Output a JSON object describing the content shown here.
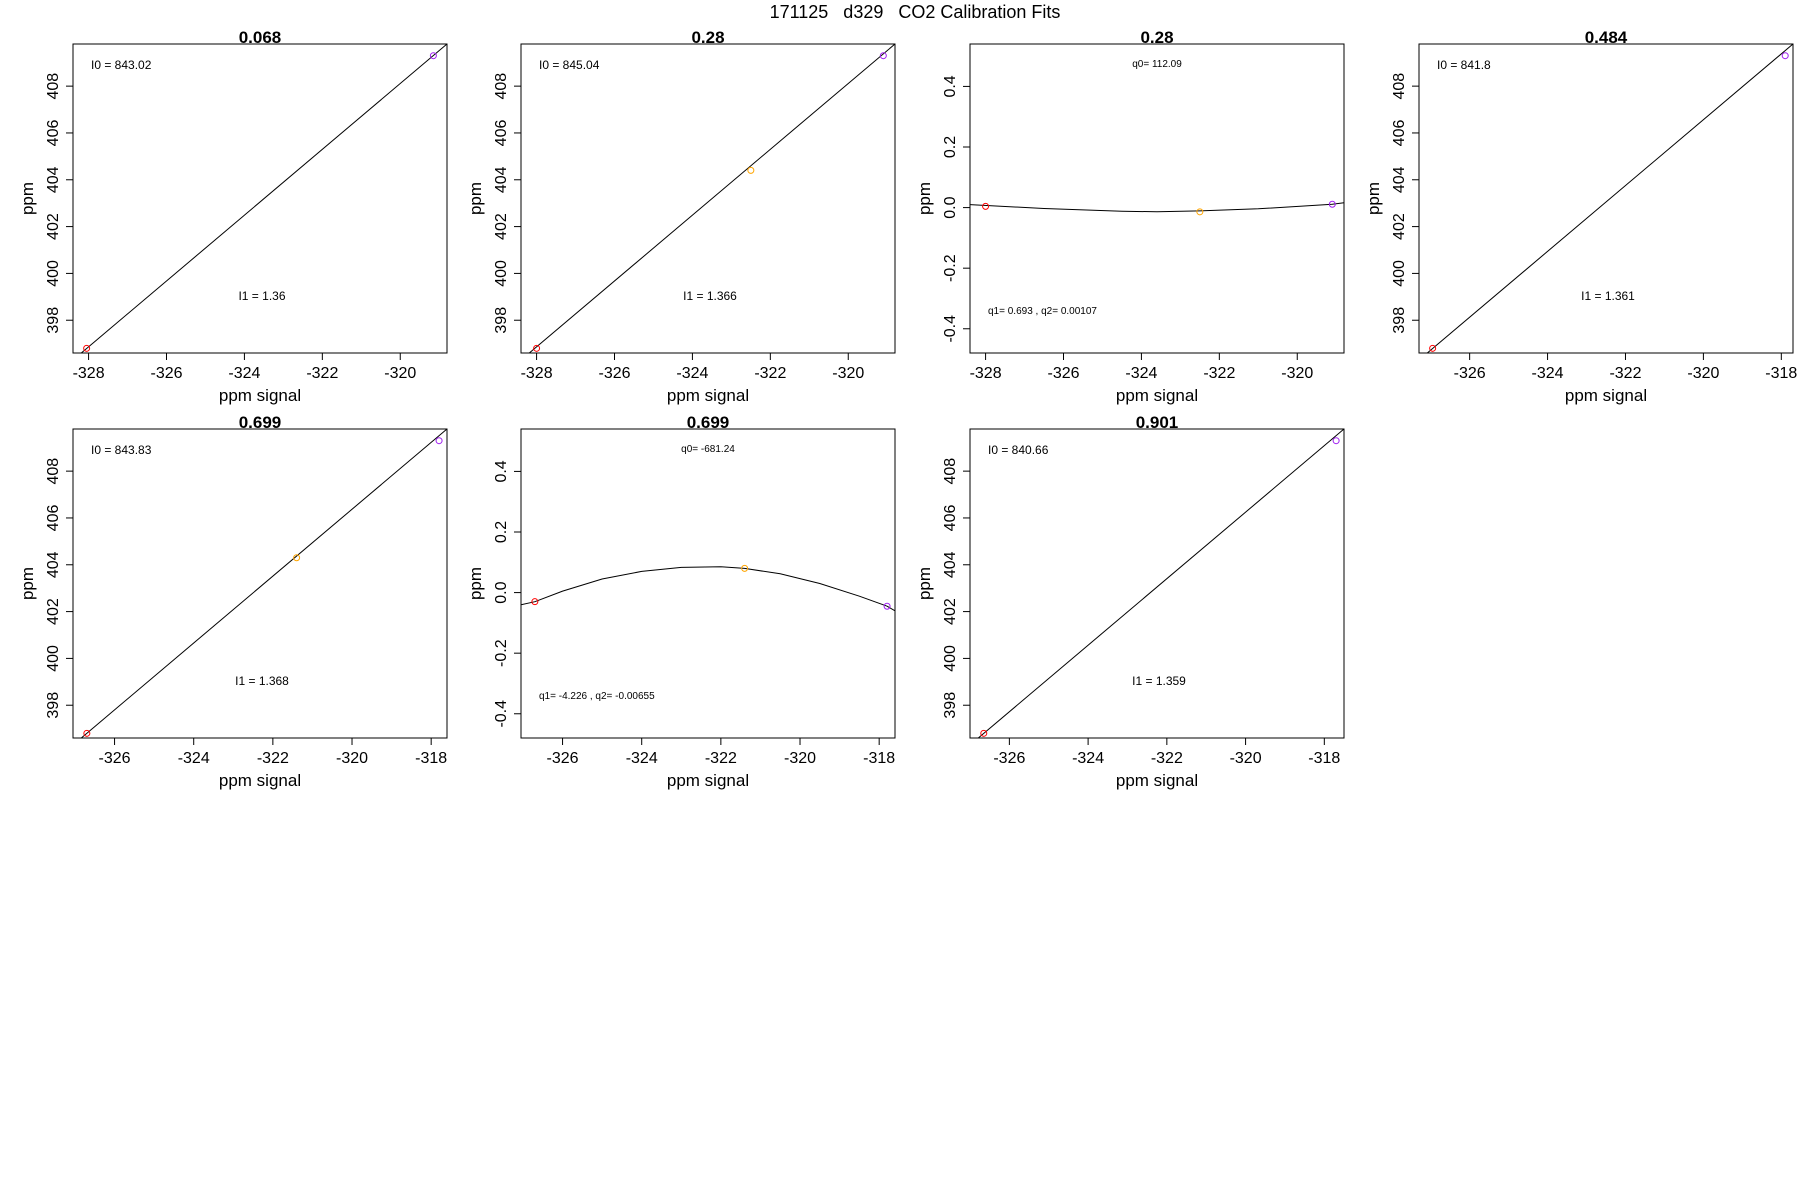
{
  "page": {
    "title": "171125   d329   CO2 Calibration Fits"
  },
  "colors": {
    "axis": "#000000",
    "fit_line": "#000000",
    "point_low": "#ff0000",
    "point_mid": "#ffa500",
    "point_high": "#a020f0"
  },
  "chart_data": [
    {
      "type": "scatter",
      "title": "0.068",
      "xlabel": "ppm signal",
      "ylabel": "ppm",
      "xlim": [
        -328.4,
        -318.8
      ],
      "ylim": [
        396.6,
        409.8
      ],
      "xticks": [
        -328,
        -326,
        -324,
        -322,
        -320
      ],
      "yticks": [
        398,
        400,
        402,
        404,
        406,
        408
      ],
      "points": [
        {
          "x": -328.05,
          "y": 396.8,
          "color": "point_low"
        },
        {
          "x": -319.15,
          "y": 409.3,
          "color": "point_high"
        }
      ],
      "fit": {
        "kind": "linear",
        "line": [
          [
            -328.4,
            396.3
          ],
          [
            -318.8,
            409.8
          ]
        ]
      },
      "annotations": [
        {
          "text": "I0 =  843.02",
          "pos": "top-left"
        },
        {
          "text": "I1 =  1.36",
          "pos": "middle-lower"
        }
      ]
    },
    {
      "type": "scatter",
      "title": "0.28",
      "xlabel": "ppm signal",
      "ylabel": "ppm",
      "xlim": [
        -328.4,
        -318.8
      ],
      "ylim": [
        396.6,
        409.8
      ],
      "xticks": [
        -328,
        -326,
        -324,
        -322,
        -320
      ],
      "yticks": [
        398,
        400,
        402,
        404,
        406,
        408
      ],
      "points": [
        {
          "x": -328.0,
          "y": 396.8,
          "color": "point_low"
        },
        {
          "x": -322.5,
          "y": 404.4,
          "color": "point_mid"
        },
        {
          "x": -319.1,
          "y": 409.3,
          "color": "point_high"
        }
      ],
      "fit": {
        "kind": "linear",
        "line": [
          [
            -328.4,
            396.3
          ],
          [
            -318.8,
            409.8
          ]
        ]
      },
      "annotations": [
        {
          "text": "I0 =  845.04",
          "pos": "top-left"
        },
        {
          "text": "I1 =  1.366",
          "pos": "middle-lower"
        }
      ]
    },
    {
      "type": "scatter",
      "title": "0.28",
      "xlabel": "ppm signal",
      "ylabel": "ppm",
      "xlim": [
        -328.4,
        -318.8
      ],
      "ylim": [
        -0.48,
        0.54
      ],
      "xticks": [
        -328,
        -326,
        -324,
        -322,
        -320
      ],
      "yticks": [
        -0.4,
        -0.2,
        0.0,
        0.2,
        0.4
      ],
      "points": [
        {
          "x": -328.0,
          "y": 0.004,
          "color": "point_low"
        },
        {
          "x": -322.5,
          "y": -0.014,
          "color": "point_mid"
        },
        {
          "x": -319.1,
          "y": 0.011,
          "color": "point_high"
        }
      ],
      "fit": {
        "kind": "curve",
        "line": [
          [
            -328.4,
            0.01
          ],
          [
            -326.5,
            -0.003
          ],
          [
            -324.5,
            -0.012
          ],
          [
            -323.6,
            -0.014
          ],
          [
            -322.5,
            -0.011
          ],
          [
            -321.0,
            -0.004
          ],
          [
            -319.1,
            0.011
          ],
          [
            -318.8,
            0.016
          ]
        ]
      },
      "annotations": [
        {
          "text": "q0= 112.09",
          "pos": "top-center"
        },
        {
          "text": "q1= 0.693 , q2= 0.00107",
          "pos": "bottom-left"
        }
      ]
    },
    {
      "type": "scatter",
      "title": "0.484",
      "xlabel": "ppm signal",
      "ylabel": "ppm",
      "xlim": [
        -327.3,
        -317.7
      ],
      "ylim": [
        396.6,
        409.8
      ],
      "xticks": [
        -326,
        -324,
        -322,
        -320,
        -318
      ],
      "yticks": [
        398,
        400,
        402,
        404,
        406,
        408
      ],
      "points": [
        {
          "x": -326.95,
          "y": 396.8,
          "color": "point_low"
        },
        {
          "x": -317.9,
          "y": 409.3,
          "color": "point_high"
        }
      ],
      "fit": {
        "kind": "linear",
        "line": [
          [
            -327.3,
            396.3
          ],
          [
            -317.7,
            409.8
          ]
        ]
      },
      "annotations": [
        {
          "text": "I0 =  841.8",
          "pos": "top-left"
        },
        {
          "text": "I1 =  1.361",
          "pos": "middle-lower"
        }
      ]
    },
    {
      "type": "scatter",
      "title": "0.699",
      "xlabel": "ppm signal",
      "ylabel": "ppm",
      "xlim": [
        -327.05,
        -317.6
      ],
      "ylim": [
        396.6,
        409.8
      ],
      "xticks": [
        -326,
        -324,
        -322,
        -320,
        -318
      ],
      "yticks": [
        398,
        400,
        402,
        404,
        406,
        408
      ],
      "points": [
        {
          "x": -326.7,
          "y": 396.8,
          "color": "point_low"
        },
        {
          "x": -321.4,
          "y": 404.3,
          "color": "point_mid"
        },
        {
          "x": -317.8,
          "y": 409.3,
          "color": "point_high"
        }
      ],
      "fit": {
        "kind": "linear",
        "line": [
          [
            -327.05,
            396.3
          ],
          [
            -317.6,
            409.8
          ]
        ]
      },
      "annotations": [
        {
          "text": "I0 =  843.83",
          "pos": "top-left"
        },
        {
          "text": "I1 =  1.368",
          "pos": "middle-lower"
        }
      ]
    },
    {
      "type": "scatter",
      "title": "0.699",
      "xlabel": "ppm signal",
      "ylabel": "ppm",
      "xlim": [
        -327.05,
        -317.6
      ],
      "ylim": [
        -0.48,
        0.54
      ],
      "xticks": [
        -326,
        -324,
        -322,
        -320,
        -318
      ],
      "yticks": [
        -0.4,
        -0.2,
        0.0,
        0.2,
        0.4
      ],
      "points": [
        {
          "x": -326.7,
          "y": -0.03,
          "color": "point_low"
        },
        {
          "x": -321.4,
          "y": 0.08,
          "color": "point_mid"
        },
        {
          "x": -317.8,
          "y": -0.045,
          "color": "point_high"
        }
      ],
      "fit": {
        "kind": "curve",
        "line": [
          [
            -327.05,
            -0.04
          ],
          [
            -326.7,
            -0.03
          ],
          [
            -326.0,
            0.005
          ],
          [
            -325.0,
            0.045
          ],
          [
            -324.0,
            0.07
          ],
          [
            -323.0,
            0.083
          ],
          [
            -322.0,
            0.085
          ],
          [
            -321.4,
            0.08
          ],
          [
            -320.5,
            0.062
          ],
          [
            -319.5,
            0.03
          ],
          [
            -318.5,
            -0.012
          ],
          [
            -317.8,
            -0.045
          ],
          [
            -317.6,
            -0.06
          ]
        ]
      },
      "annotations": [
        {
          "text": "q0= -681.24",
          "pos": "top-center"
        },
        {
          "text": "q1= -4.226 , q2= -0.00655",
          "pos": "bottom-left"
        }
      ]
    },
    {
      "type": "scatter",
      "title": "0.901",
      "xlabel": "ppm signal",
      "ylabel": "ppm",
      "xlim": [
        -327.0,
        -317.5
      ],
      "ylim": [
        396.6,
        409.8
      ],
      "xticks": [
        -326,
        -324,
        -322,
        -320,
        -318
      ],
      "yticks": [
        398,
        400,
        402,
        404,
        406,
        408
      ],
      "points": [
        {
          "x": -326.65,
          "y": 396.8,
          "color": "point_low"
        },
        {
          "x": -317.7,
          "y": 409.3,
          "color": "point_high"
        }
      ],
      "fit": {
        "kind": "linear",
        "line": [
          [
            -327.0,
            396.3
          ],
          [
            -317.5,
            409.8
          ]
        ]
      },
      "annotations": [
        {
          "text": "I0 =  840.66",
          "pos": "top-left"
        },
        {
          "text": "I1 =  1.359",
          "pos": "middle-lower"
        }
      ]
    }
  ]
}
